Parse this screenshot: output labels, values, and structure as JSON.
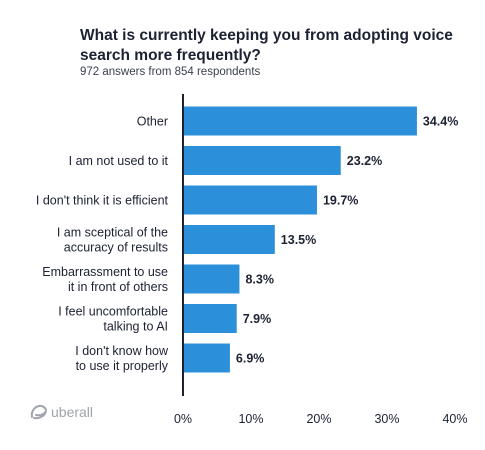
{
  "logo_text": "uberall",
  "chart_data": {
    "type": "bar",
    "orientation": "horizontal",
    "title": "What is currently keeping you from adopting voice search more frequently?",
    "subtitle": "972 answers from 854 respondents",
    "categories": [
      [
        "Other"
      ],
      [
        "I am not used to it"
      ],
      [
        "I don't think it is efficient"
      ],
      [
        "I am sceptical of the",
        "accuracy of results"
      ],
      [
        "Embarrassment to use",
        "it in front of others"
      ],
      [
        "I feel uncomfortable",
        "talking to AI"
      ],
      [
        "I don't know how",
        "to use it properly"
      ]
    ],
    "values": [
      34.4,
      23.2,
      19.7,
      13.5,
      8.3,
      7.9,
      6.9
    ],
    "value_labels": [
      "34.4%",
      "23.2%",
      "19.7%",
      "13.5%",
      "8.3%",
      "7.9%",
      "6.9%"
    ],
    "xlim": [
      0,
      40
    ],
    "xticks": [
      0,
      10,
      20,
      30,
      40
    ],
    "xtick_labels": [
      "0%",
      "10%",
      "20%",
      "30%",
      "40%"
    ],
    "grid": false,
    "bar_color": "#2b90d9",
    "axis_color": "#1d2233"
  }
}
